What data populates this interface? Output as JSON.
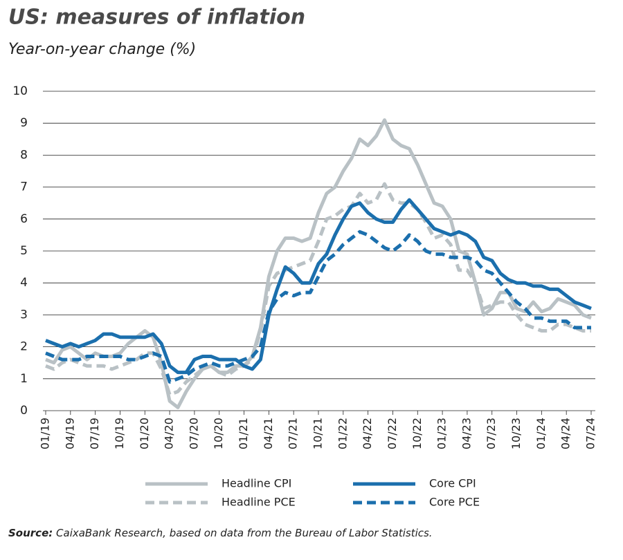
{
  "chart_data": {
    "type": "line",
    "title": "US: measures of inflation",
    "subtitle": "Year-on-year change (%)",
    "source_label": "Source:",
    "source": "CaixaBank Research, based on data from the Bureau of Labor Statistics.",
    "categories": [
      "01/19",
      null,
      null,
      "04/19",
      null,
      null,
      "07/19",
      null,
      null,
      "10/19",
      null,
      null,
      "01/20",
      null,
      null,
      "04/20",
      null,
      null,
      "07/20",
      null,
      null,
      "10/20",
      null,
      null,
      "01/21",
      null,
      null,
      "04/21",
      null,
      null,
      "07/21",
      null,
      null,
      "10/21",
      null,
      null,
      "01/22",
      null,
      null,
      "04/22",
      null,
      null,
      "07/22",
      null,
      null,
      "10/22",
      null,
      null,
      "01/23",
      null,
      null,
      "04/23",
      null,
      null,
      "07/23",
      null,
      null,
      "10/23",
      null,
      null,
      "01/24",
      null,
      null,
      "04/24",
      null,
      null,
      "07/24"
    ],
    "series": [
      {
        "name": "Headline CPI",
        "color": "#b9c1c5",
        "style": "solid",
        "values": [
          1.6,
          1.5,
          1.9,
          2.0,
          1.8,
          1.6,
          1.8,
          1.7,
          1.7,
          1.8,
          2.1,
          2.3,
          2.5,
          2.3,
          1.5,
          0.3,
          0.1,
          0.6,
          1.0,
          1.3,
          1.4,
          1.2,
          1.2,
          1.4,
          1.4,
          1.7,
          2.6,
          4.2,
          5.0,
          5.4,
          5.4,
          5.3,
          5.4,
          6.2,
          6.8,
          7.0,
          7.5,
          7.9,
          8.5,
          8.3,
          8.6,
          9.1,
          8.5,
          8.3,
          8.2,
          7.7,
          7.1,
          6.5,
          6.4,
          6.0,
          5.0,
          4.9,
          4.0,
          3.0,
          3.2,
          3.7,
          3.7,
          3.2,
          3.1,
          3.4,
          3.1,
          3.2,
          3.5,
          3.4,
          3.3,
          3.0,
          2.9
        ]
      },
      {
        "name": "Core CPI",
        "color": "#1b6fad",
        "style": "solid",
        "values": [
          2.2,
          2.1,
          2.0,
          2.1,
          2.0,
          2.1,
          2.2,
          2.4,
          2.4,
          2.3,
          2.3,
          2.3,
          2.3,
          2.4,
          2.1,
          1.4,
          1.2,
          1.2,
          1.6,
          1.7,
          1.7,
          1.6,
          1.6,
          1.6,
          1.4,
          1.3,
          1.6,
          3.0,
          3.8,
          4.5,
          4.3,
          4.0,
          4.0,
          4.6,
          4.9,
          5.5,
          6.0,
          6.4,
          6.5,
          6.2,
          6.0,
          5.9,
          5.9,
          6.3,
          6.6,
          6.3,
          6.0,
          5.7,
          5.6,
          5.5,
          5.6,
          5.5,
          5.3,
          4.8,
          4.7,
          4.3,
          4.1,
          4.0,
          4.0,
          3.9,
          3.9,
          3.8,
          3.8,
          3.6,
          3.4,
          3.3,
          3.2
        ]
      },
      {
        "name": "Headline PCE",
        "color": "#b9c1c5",
        "style": "dashed",
        "values": [
          1.4,
          1.3,
          1.5,
          1.6,
          1.5,
          1.4,
          1.4,
          1.4,
          1.3,
          1.4,
          1.5,
          1.6,
          1.8,
          1.8,
          1.3,
          0.5,
          0.6,
          0.9,
          1.1,
          1.3,
          1.4,
          1.2,
          1.1,
          1.3,
          1.4,
          1.6,
          2.5,
          3.9,
          4.3,
          4.4,
          4.5,
          4.6,
          4.7,
          5.3,
          6.0,
          6.1,
          6.3,
          6.4,
          6.8,
          6.5,
          6.6,
          7.1,
          6.6,
          6.5,
          6.5,
          6.3,
          5.9,
          5.4,
          5.5,
          5.2,
          4.4,
          4.4,
          4.0,
          3.2,
          3.3,
          3.4,
          3.4,
          3.0,
          2.7,
          2.6,
          2.5,
          2.5,
          2.7,
          2.7,
          2.6,
          2.5,
          2.5
        ]
      },
      {
        "name": "Core PCE",
        "color": "#1b6fad",
        "style": "dashed",
        "values": [
          1.8,
          1.7,
          1.6,
          1.6,
          1.6,
          1.7,
          1.7,
          1.7,
          1.7,
          1.7,
          1.6,
          1.6,
          1.7,
          1.8,
          1.7,
          0.9,
          1.0,
          1.1,
          1.3,
          1.4,
          1.5,
          1.4,
          1.4,
          1.5,
          1.6,
          1.7,
          2.0,
          3.1,
          3.5,
          3.7,
          3.6,
          3.7,
          3.7,
          4.2,
          4.7,
          4.9,
          5.2,
          5.4,
          5.6,
          5.5,
          5.3,
          5.1,
          5.0,
          5.2,
          5.5,
          5.3,
          5.0,
          4.9,
          4.9,
          4.8,
          4.8,
          4.8,
          4.7,
          4.4,
          4.3,
          4.0,
          3.7,
          3.4,
          3.2,
          2.9,
          2.9,
          2.8,
          2.8,
          2.8,
          2.6,
          2.6,
          2.6
        ]
      }
    ],
    "ylim": [
      0,
      10
    ],
    "yticks": [
      0,
      1,
      2,
      3,
      4,
      5,
      6,
      7,
      8,
      9,
      10
    ],
    "grid": true
  }
}
